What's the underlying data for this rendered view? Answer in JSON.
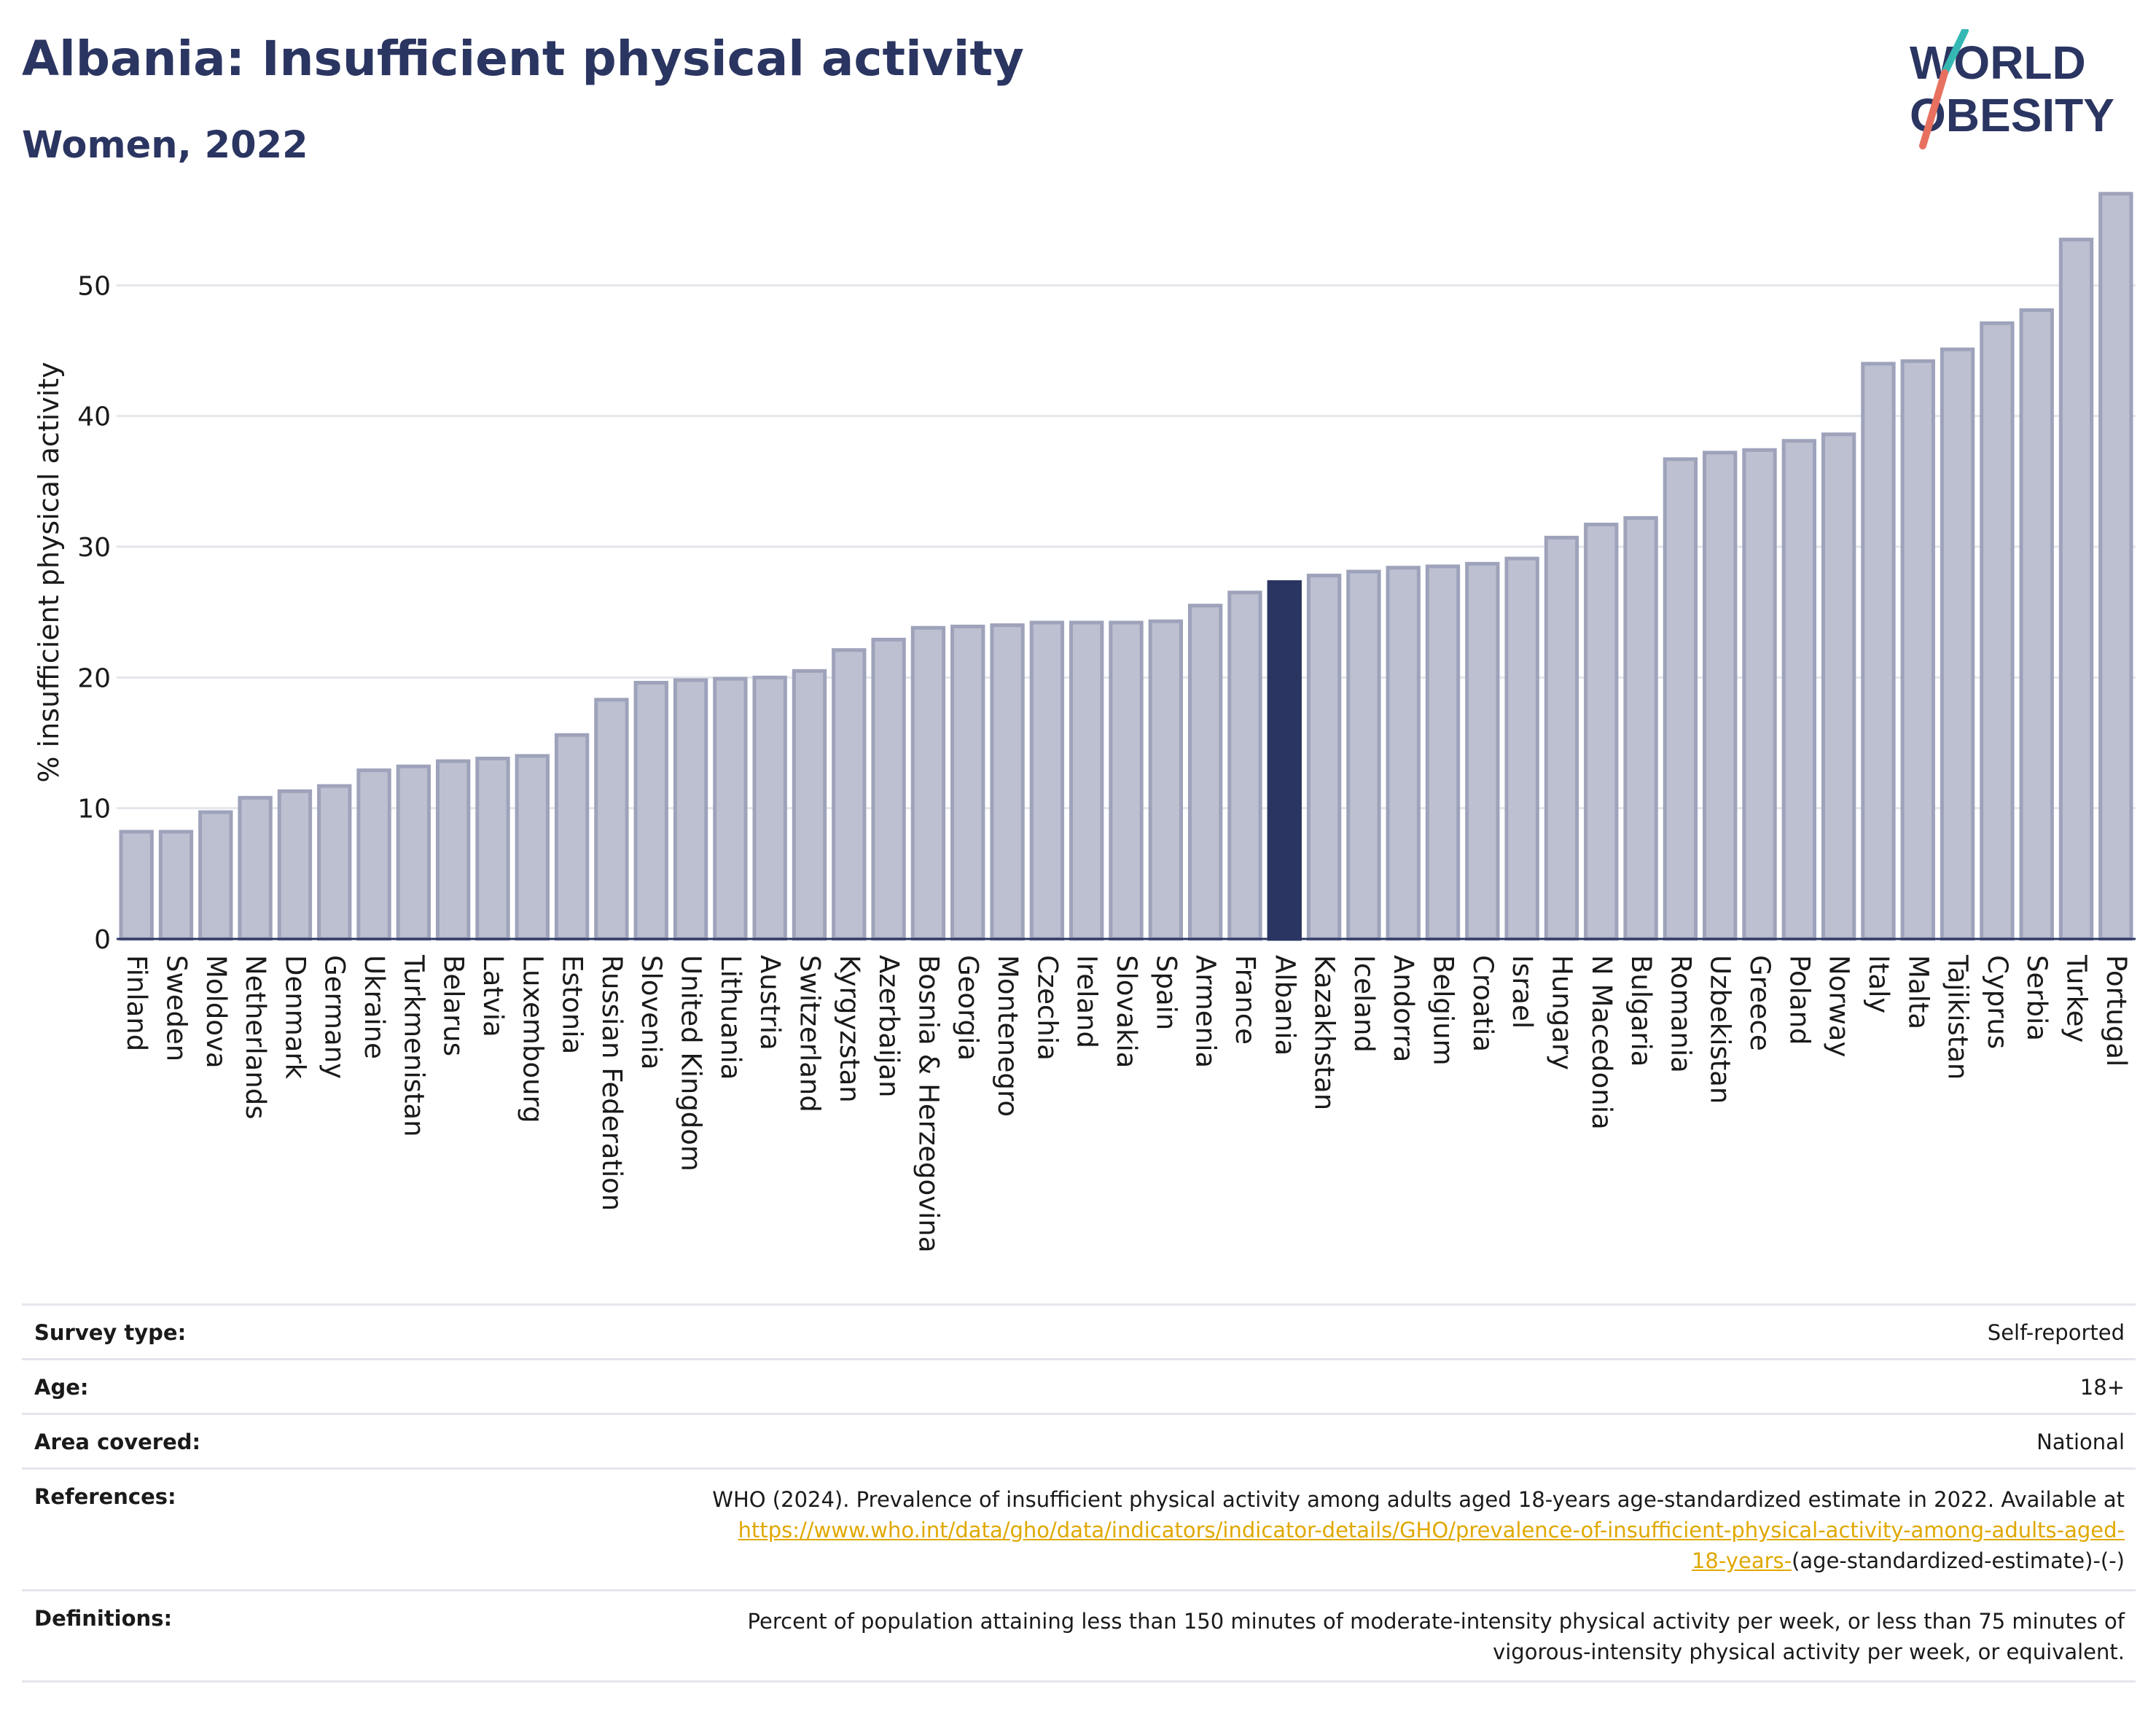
{
  "header": {
    "title": "Albania: Insufficient physical activity",
    "subtitle": "Women, 2022",
    "logo_line1": "WORLD",
    "logo_line2": "OBESITY"
  },
  "chart_data": {
    "type": "bar",
    "ylabel": "% insufficient physical activity",
    "ylim": [
      0,
      60
    ],
    "yticks": [
      0,
      10,
      20,
      30,
      40,
      50
    ],
    "grid": true,
    "highlight": "Albania",
    "colors": {
      "bar": "#bcc0d0",
      "bar_edge": "#9ea3bb",
      "highlight": "#2b3561",
      "grid": "#e4e6ec",
      "axis": "#2b3561"
    },
    "categories": [
      "Finland",
      "Sweden",
      "Moldova",
      "Netherlands",
      "Denmark",
      "Germany",
      "Ukraine",
      "Turkmenistan",
      "Belarus",
      "Latvia",
      "Luxembourg",
      "Estonia",
      "Russian Federation",
      "Slovenia",
      "United Kingdom",
      "Lithuania",
      "Austria",
      "Switzerland",
      "Kyrgyzstan",
      "Azerbaijan",
      "Bosnia & Herzegovina",
      "Georgia",
      "Montenegro",
      "Czechia",
      "Ireland",
      "Slovakia",
      "Spain",
      "Armenia",
      "France",
      "Albania",
      "Kazakhstan",
      "Iceland",
      "Andorra",
      "Belgium",
      "Croatia",
      "Israel",
      "Hungary",
      "N Macedonia",
      "Bulgaria",
      "Romania",
      "Uzbekistan",
      "Greece",
      "Poland",
      "Norway",
      "Italy",
      "Malta",
      "Tajikistan",
      "Cyprus",
      "Serbia",
      "Turkey",
      "Portugal"
    ],
    "values": [
      8.2,
      8.2,
      9.7,
      10.8,
      11.3,
      11.7,
      12.9,
      13.2,
      13.6,
      13.8,
      14.0,
      15.6,
      18.3,
      19.6,
      19.8,
      19.9,
      20.0,
      20.5,
      22.1,
      22.9,
      23.8,
      23.9,
      24.0,
      24.2,
      24.2,
      24.2,
      24.3,
      25.5,
      26.5,
      27.3,
      27.8,
      28.1,
      28.4,
      28.5,
      28.7,
      29.1,
      30.7,
      31.7,
      32.2,
      36.7,
      37.2,
      37.4,
      38.1,
      38.6,
      44.0,
      44.2,
      45.1,
      47.1,
      48.1,
      53.5,
      57.0
    ]
  },
  "info": {
    "survey_type_label": "Survey type:",
    "survey_type_value": "Self-reported",
    "age_label": "Age:",
    "age_value": "18+",
    "area_label": "Area covered:",
    "area_value": "National",
    "references_label": "References:",
    "references_text_line1": "WHO (2024). Prevalence of insufficient physical activity among adults aged 18-years age-standardized estimate in 2022. Available at",
    "references_link_line2": "https://www.who.int/data/gho/data/indicators/indicator-details/GHO/prevalence-of-insufficient-physical-activity-among-adults-aged-",
    "references_link_line3": "18-years-",
    "references_text_line3": "(age-standardized-estimate)-(-)",
    "definitions_label": "Definitions:",
    "definitions_line1": "Percent of population attaining less than 150 minutes of moderate-intensity physical activity per week, or less than 75 minutes of",
    "definitions_line2": "vigorous-intensity physical activity per week, or equivalent."
  }
}
